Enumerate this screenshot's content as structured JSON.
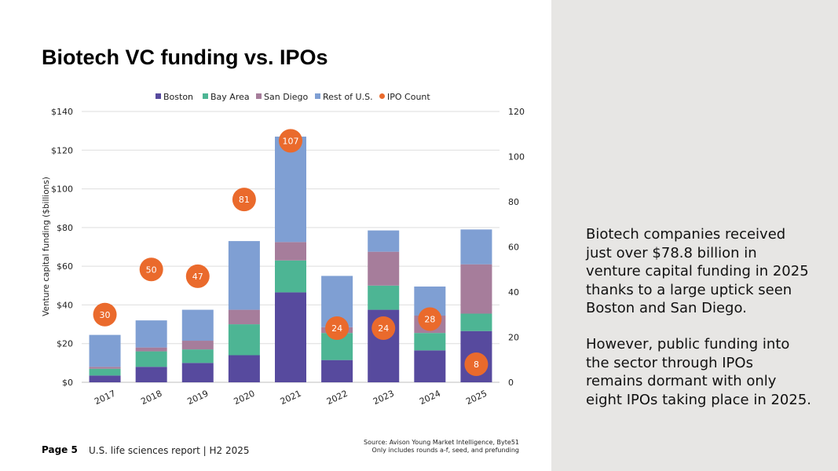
{
  "page": {
    "title": "Biotech VC funding vs. IPOs",
    "page_label": "Page 5",
    "report_label": "U.S. life sciences report | H2 2025",
    "source_line1": "Source: Avison Young Market Intelligence, Byte51",
    "source_line2": "Only includes rounds a-f, seed, and prefunding",
    "paragraph1": "Biotech companies received just over $78.8 billion in venture capital funding in 2025 thanks to a large uptick seen Boston and San Diego.",
    "paragraph2": "However, public funding into the sector through IPOs remains dormant with only eight IPOs taking place in 2025."
  },
  "chart_data": {
    "type": "bar",
    "stacked": true,
    "categories": [
      "2017",
      "2018",
      "2019",
      "2020",
      "2021",
      "2022",
      "2023",
      "2024",
      "2025"
    ],
    "series": [
      {
        "name": "Boston",
        "color": "#574a9e",
        "values": [
          3.5,
          8,
          10,
          14,
          46.5,
          11.5,
          37.5,
          16.5,
          26.5
        ]
      },
      {
        "name": "Bay Area",
        "color": "#4db594",
        "values": [
          3.5,
          8,
          7,
          16,
          16.5,
          14,
          12.5,
          9,
          9
        ]
      },
      {
        "name": "San Diego",
        "color": "#a67d9b",
        "values": [
          1,
          2,
          4.5,
          7.5,
          9.5,
          3,
          17.5,
          9,
          25.5
        ]
      },
      {
        "name": "Rest of U.S.",
        "color": "#7f9fd3",
        "values": [
          16.5,
          14,
          16,
          35.5,
          54.5,
          26.5,
          11,
          15,
          18
        ]
      }
    ],
    "line_series": {
      "name": "IPO Count",
      "color": "#ea6a2c",
      "values": [
        30,
        50,
        47,
        81,
        107,
        24,
        24,
        28,
        8
      ]
    },
    "ylabel": "Venture capital funding ($billions)",
    "ylim": [
      0,
      140
    ],
    "yticks": [
      "$0",
      "$20",
      "$40",
      "$60",
      "$80",
      "$100",
      "$120",
      "$140"
    ],
    "y2lim": [
      0,
      120
    ],
    "y2ticks": [
      "0",
      "20",
      "40",
      "60",
      "80",
      "100",
      "120"
    ],
    "legend": [
      "Boston",
      "Bay Area",
      "San Diego",
      "Rest of U.S.",
      "IPO Count"
    ],
    "legend_position": "top-center",
    "grid": true
  }
}
